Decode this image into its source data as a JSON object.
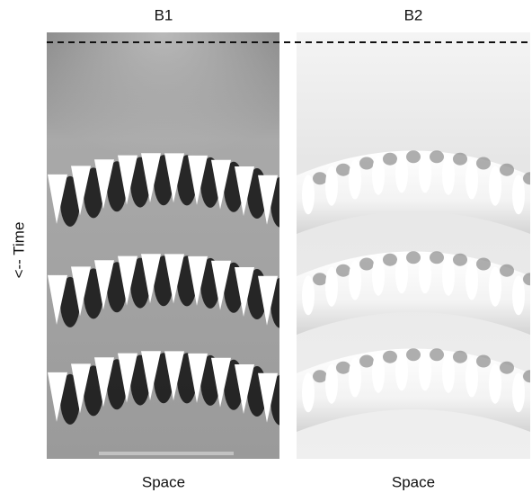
{
  "figure": {
    "ylabel": "<-- Time",
    "panels": [
      {
        "title": "B1",
        "xlabel": "Space"
      },
      {
        "title": "B2",
        "xlabel": "Space"
      }
    ]
  }
}
